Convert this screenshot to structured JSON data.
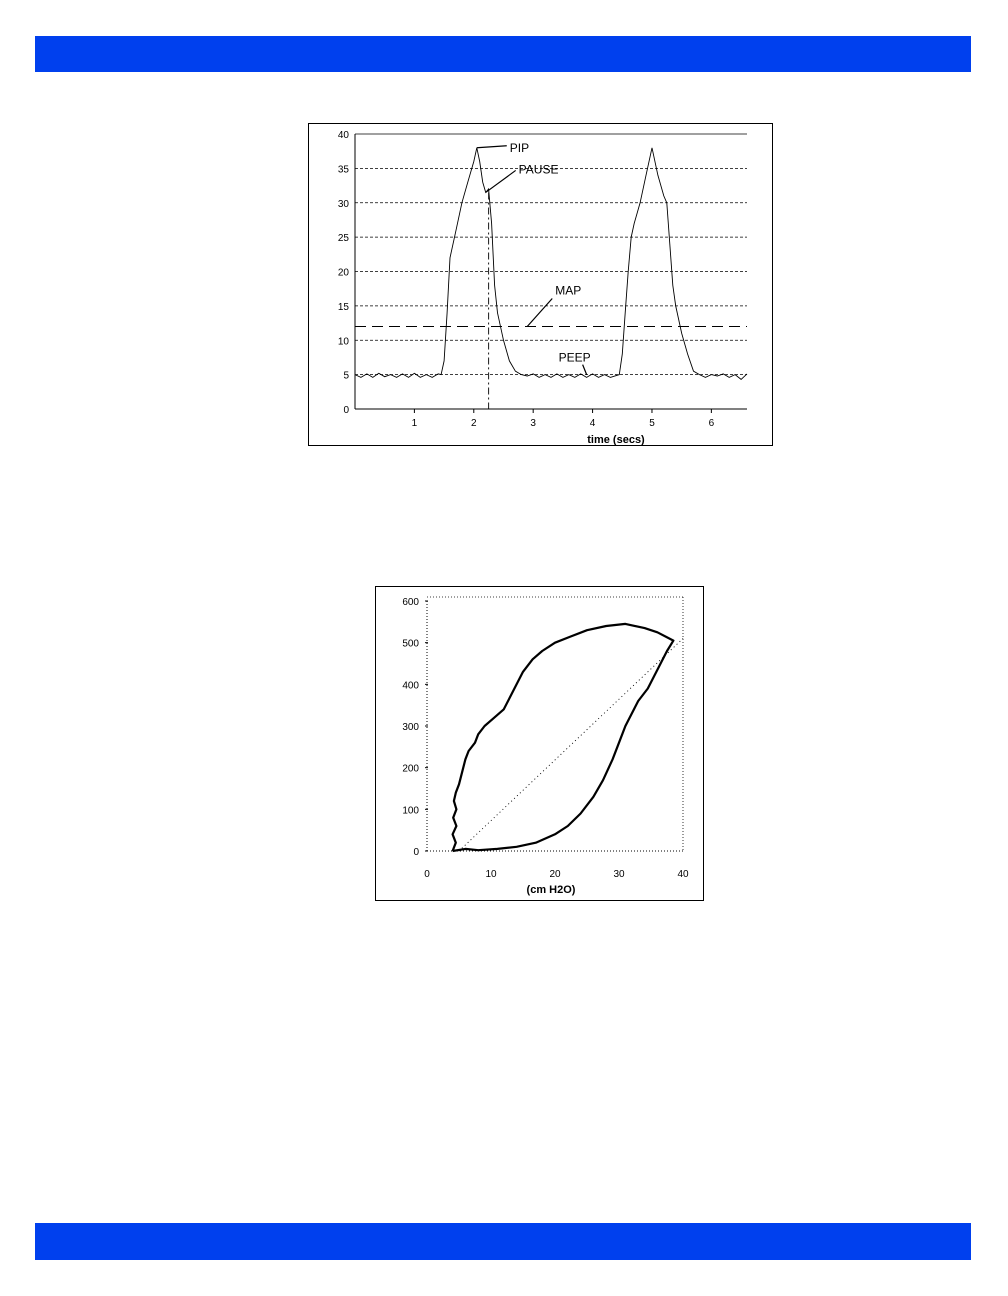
{
  "page": {
    "banner_color": "#0040ee"
  },
  "chart_data": [
    {
      "type": "line",
      "title": "",
      "xlabel": "time (secs)",
      "ylabel": "",
      "xlim": [
        0,
        6.6
      ],
      "ylim": [
        0,
        40
      ],
      "x_ticks": [
        1,
        2,
        3,
        4,
        5,
        6
      ],
      "y_ticks": [
        0,
        5,
        10,
        15,
        20,
        25,
        30,
        35,
        40
      ],
      "grid": "horizontal dashed",
      "series": [
        {
          "points": [
            [
              0.0,
              5.0
            ],
            [
              0.1,
              4.6
            ],
            [
              0.2,
              5.1
            ],
            [
              0.3,
              4.6
            ],
            [
              0.4,
              5.2
            ],
            [
              0.5,
              4.7
            ],
            [
              0.6,
              5.0
            ],
            [
              0.7,
              4.6
            ],
            [
              0.8,
              5.1
            ],
            [
              0.9,
              4.6
            ],
            [
              1.0,
              5.2
            ],
            [
              1.1,
              4.6
            ],
            [
              1.2,
              5.0
            ],
            [
              1.3,
              4.6
            ],
            [
              1.4,
              5.1
            ],
            [
              1.45,
              5.0
            ],
            [
              1.5,
              7.0
            ],
            [
              1.55,
              14.0
            ],
            [
              1.6,
              22.0
            ],
            [
              1.7,
              26.0
            ],
            [
              1.8,
              30.0
            ],
            [
              1.9,
              33.0
            ],
            [
              2.0,
              36.0
            ],
            [
              2.05,
              38.0
            ],
            [
              2.1,
              36.0
            ],
            [
              2.15,
              33.0
            ],
            [
              2.2,
              31.5
            ],
            [
              2.25,
              32.0
            ],
            [
              2.3,
              27.0
            ],
            [
              2.35,
              18.0
            ],
            [
              2.4,
              14.0
            ],
            [
              2.5,
              10.0
            ],
            [
              2.6,
              7.0
            ],
            [
              2.7,
              5.5
            ],
            [
              2.8,
              5.0
            ],
            [
              2.9,
              4.8
            ],
            [
              3.0,
              5.1
            ],
            [
              3.1,
              4.6
            ],
            [
              3.2,
              5.0
            ],
            [
              3.3,
              4.6
            ],
            [
              3.4,
              5.1
            ],
            [
              3.5,
              4.6
            ],
            [
              3.6,
              5.0
            ],
            [
              3.7,
              4.6
            ],
            [
              3.8,
              5.1
            ],
            [
              3.9,
              4.6
            ],
            [
              4.0,
              5.1
            ],
            [
              4.1,
              4.6
            ],
            [
              4.2,
              5.0
            ],
            [
              4.3,
              4.6
            ],
            [
              4.45,
              5.0
            ],
            [
              4.5,
              8.0
            ],
            [
              4.55,
              14.0
            ],
            [
              4.6,
              20.0
            ],
            [
              4.65,
              25.0
            ],
            [
              4.7,
              27.0
            ],
            [
              4.8,
              30.0
            ],
            [
              4.9,
              34.0
            ],
            [
              5.0,
              38.0
            ],
            [
              5.1,
              34.0
            ],
            [
              5.2,
              31.0
            ],
            [
              5.25,
              30.0
            ],
            [
              5.3,
              24.0
            ],
            [
              5.35,
              18.0
            ],
            [
              5.4,
              15.0
            ],
            [
              5.5,
              11.0
            ],
            [
              5.6,
              8.0
            ],
            [
              5.7,
              5.5
            ],
            [
              5.8,
              5.0
            ],
            [
              5.9,
              4.6
            ],
            [
              6.0,
              5.0
            ],
            [
              6.1,
              4.8
            ],
            [
              6.2,
              5.1
            ],
            [
              6.3,
              4.6
            ],
            [
              6.4,
              5.0
            ],
            [
              6.5,
              4.3
            ],
            [
              6.6,
              5.1
            ]
          ]
        }
      ],
      "reference_lines": {
        "map_level": 12,
        "pause_time": 2.25
      },
      "annotations": [
        {
          "text": "PIP",
          "x": 2.05,
          "y": 38
        },
        {
          "text": "PAUSE",
          "x": 2.2,
          "y": 31.5
        },
        {
          "text": "MAP",
          "x": 2.9,
          "y": 12
        },
        {
          "text": "PEEP",
          "x": 3.9,
          "y": 5
        }
      ]
    },
    {
      "type": "line",
      "title": "",
      "xlabel": "(cm H2O)",
      "ylabel": "",
      "xlim": [
        0,
        40
      ],
      "ylim": [
        0,
        600
      ],
      "x_ticks": [
        0,
        10,
        20,
        30,
        40
      ],
      "y_ticks": [
        0,
        100,
        200,
        300,
        400,
        500,
        600
      ],
      "grid": "none",
      "series": [
        {
          "points": [
            [
              4.0,
              0
            ],
            [
              4.5,
              20
            ],
            [
              4.0,
              40
            ],
            [
              4.6,
              60
            ],
            [
              4.1,
              80
            ],
            [
              4.6,
              100
            ],
            [
              4.2,
              120
            ],
            [
              4.5,
              140
            ],
            [
              5.0,
              160
            ],
            [
              5.5,
              190
            ],
            [
              6.0,
              220
            ],
            [
              6.5,
              240
            ],
            [
              7.5,
              260
            ],
            [
              8.0,
              280
            ],
            [
              9.0,
              300
            ],
            [
              10.5,
              320
            ],
            [
              12.0,
              340
            ],
            [
              13.0,
              370
            ],
            [
              14.0,
              400
            ],
            [
              15.0,
              430
            ],
            [
              16.5,
              460
            ],
            [
              18.0,
              480
            ],
            [
              20.0,
              500
            ],
            [
              22.5,
              515
            ],
            [
              25.0,
              530
            ],
            [
              28.0,
              540
            ],
            [
              31.0,
              545
            ],
            [
              34.0,
              535
            ],
            [
              36.0,
              525
            ],
            [
              38.5,
              505
            ],
            [
              37.5,
              480
            ],
            [
              36.5,
              450
            ],
            [
              35.5,
              420
            ],
            [
              34.5,
              390
            ],
            [
              33.0,
              360
            ],
            [
              32.0,
              330
            ],
            [
              31.0,
              300
            ],
            [
              30.0,
              260
            ],
            [
              29.0,
              220
            ],
            [
              27.5,
              170
            ],
            [
              26.0,
              130
            ],
            [
              24.0,
              90
            ],
            [
              22.0,
              60
            ],
            [
              20.0,
              40
            ],
            [
              17.0,
              20
            ],
            [
              14.0,
              10
            ],
            [
              11.0,
              5
            ],
            [
              8.0,
              2
            ],
            [
              6.0,
              5
            ],
            [
              4.0,
              0
            ]
          ]
        },
        {
          "points": [
            [
              5.0,
              0
            ],
            [
              40.0,
              510
            ]
          ]
        }
      ]
    }
  ]
}
